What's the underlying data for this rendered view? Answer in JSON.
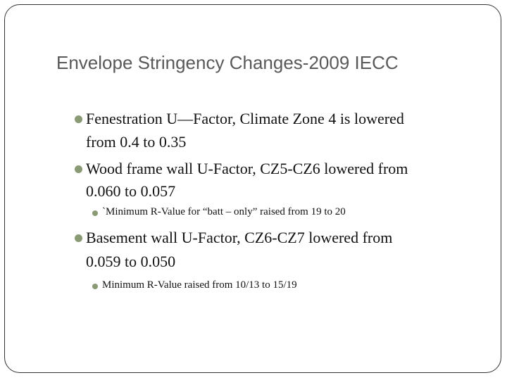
{
  "slide": {
    "title": "Envelope Stringency Changes-2009 IECC",
    "bullets": [
      {
        "lines": [
          "Fenestration U—Factor, Climate Zone 4 is lowered",
          "from 0.4 to 0.35"
        ]
      },
      {
        "lines": [
          "Wood frame wall U-Factor, CZ5-CZ6 lowered from",
          "0.060 to 0.057"
        ],
        "sub": "`Minimum R-Value for “batt – only” raised from 19 to 20"
      },
      {
        "lines": [
          "Basement wall U-Factor, CZ6-CZ7 lowered from",
          "0.059 to 0.050"
        ],
        "sub": "Minimum R-Value raised from 10/13 to 15/19"
      }
    ]
  }
}
